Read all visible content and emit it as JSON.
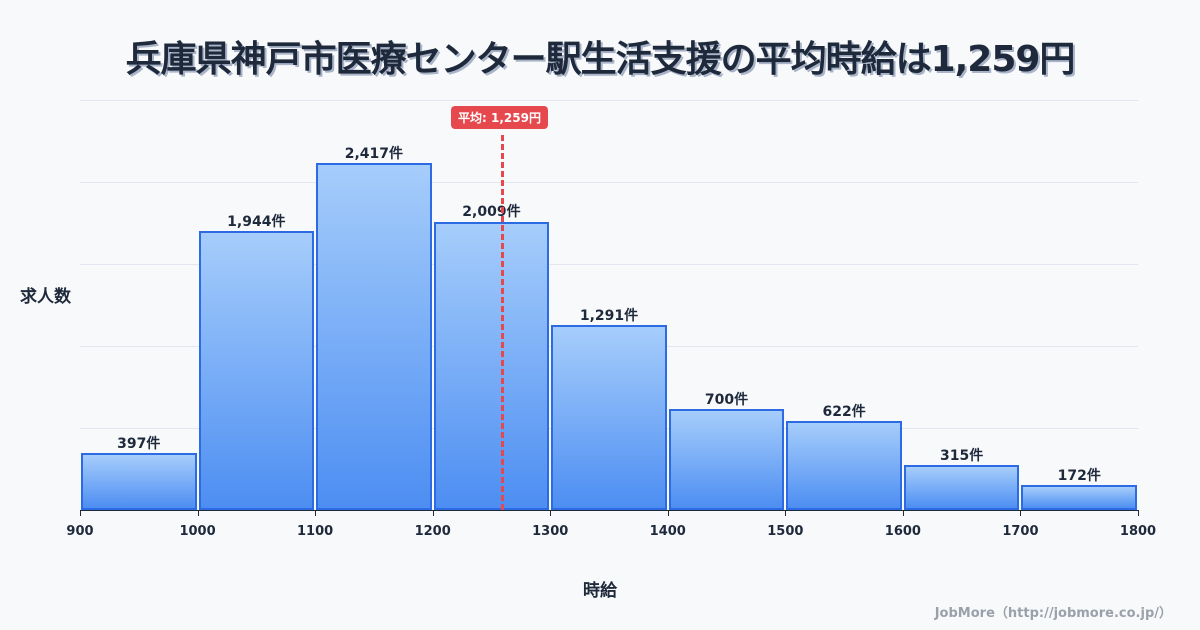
{
  "title": "兵庫県神戸市医療センター駅生活支援の平均時給は1,259円",
  "mean_badge": "平均: 1,259円",
  "ylabel": "求人数",
  "xlabel": "時給",
  "credit": "JobMore（http://jobmore.co.jp/）",
  "colors": {
    "bar_border": "#2d6be4",
    "bar_top": "#a6cdfb",
    "bar_bottom": "#4d8ef2",
    "mean": "#e5484d",
    "text": "#1e293b"
  },
  "chart_data": {
    "type": "bar",
    "title": "兵庫県神戸市医療センター駅生活支援の平均時給は1,259円",
    "xlabel": "時給",
    "ylabel": "求人数",
    "bins": [
      [
        900,
        1000
      ],
      [
        1000,
        1100
      ],
      [
        1100,
        1200
      ],
      [
        1200,
        1300
      ],
      [
        1300,
        1400
      ],
      [
        1400,
        1500
      ],
      [
        1500,
        1600
      ],
      [
        1600,
        1700
      ],
      [
        1700,
        1800
      ]
    ],
    "categories": [
      "900-1000",
      "1000-1100",
      "1100-1200",
      "1200-1300",
      "1300-1400",
      "1400-1500",
      "1500-1600",
      "1600-1700",
      "1700-1800"
    ],
    "values": [
      397,
      1944,
      2417,
      2009,
      1291,
      700,
      622,
      315,
      172
    ],
    "value_labels": [
      "397件",
      "1,944件",
      "2,417件",
      "2,009件",
      "1,291件",
      "700件",
      "622件",
      "315件",
      "172件"
    ],
    "x_ticks": [
      "900",
      "1000",
      "1100",
      "1200",
      "1300",
      "1400",
      "1500",
      "1600",
      "1700",
      "1800"
    ],
    "xlim": [
      900,
      1800
    ],
    "ylim": [
      0,
      2855
    ],
    "mean": 1259,
    "mean_label": "平均: 1,259円",
    "grid": true
  }
}
